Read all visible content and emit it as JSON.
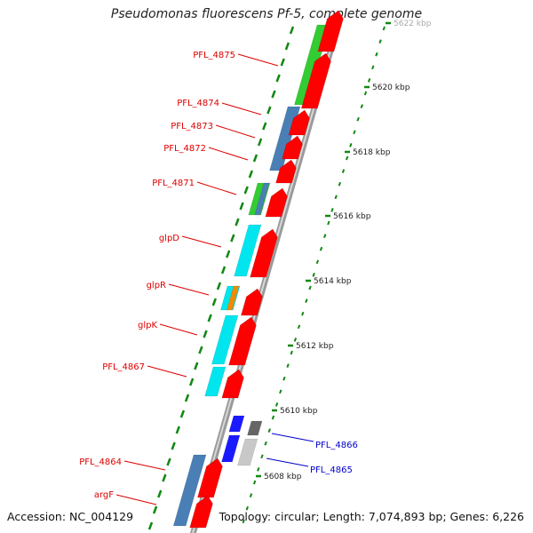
{
  "title": "Pseudomonas fluorescens Pf-5, complete genome",
  "footer": {
    "accession": "Accession: NC_004129",
    "summary": "Topology: circular; Length: 7,074,893 bp; Genes: 6,226"
  },
  "colors": {
    "cds_red": "#ff0000",
    "gene_steelblue": "#4a7fb5",
    "gene_green": "#33cc33",
    "gene_cyan": "#00e5ee",
    "gene_orange": "#f08c00",
    "gene_blue": "#1a1aff",
    "gene_gray": "#9a9a9a",
    "label_red": "#dd0000",
    "label_blue": "#0000cc",
    "tick_green": "#118811",
    "backbone": "#999999"
  },
  "scale_ticks": [
    {
      "label": "5622 kbp"
    },
    {
      "label": "5620 kbp"
    },
    {
      "label": "5618 kbp"
    },
    {
      "label": "5616 kbp"
    },
    {
      "label": "5614 kbp"
    },
    {
      "label": "5612 kbp"
    },
    {
      "label": "5610 kbp"
    },
    {
      "label": "5608 kbp"
    }
  ],
  "gene_labels": [
    {
      "text": "PFL_4875",
      "color": "label_red"
    },
    {
      "text": "PFL_4874",
      "color": "label_red"
    },
    {
      "text": "PFL_4873",
      "color": "label_red"
    },
    {
      "text": "PFL_4872",
      "color": "label_red"
    },
    {
      "text": "PFL_4871",
      "color": "label_red"
    },
    {
      "text": "glpD",
      "color": "label_red"
    },
    {
      "text": "glpR",
      "color": "label_red"
    },
    {
      "text": "glpK",
      "color": "label_red"
    },
    {
      "text": "PFL_4867",
      "color": "label_red"
    },
    {
      "text": "PFL_4864",
      "color": "label_red"
    },
    {
      "text": "argF",
      "color": "label_red"
    },
    {
      "text": "PFL_4866",
      "color": "label_blue"
    },
    {
      "text": "PFL_4865",
      "color": "label_blue"
    }
  ]
}
